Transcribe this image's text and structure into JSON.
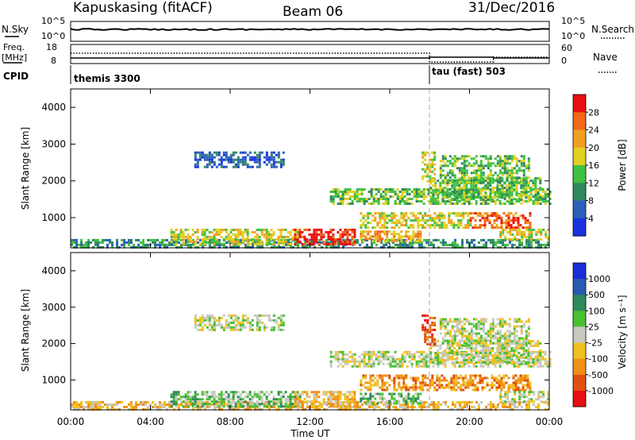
{
  "header": {
    "station": "Kapuskasing (fitACF)",
    "beam": "Beam 06",
    "date": "31/Dec/2016"
  },
  "top_panels": {
    "nsky_label": "N.Sky",
    "nsky_ticks": [
      "10^5",
      "10^0"
    ],
    "nsearch_label": "N.Search",
    "nsearch_ticks": [
      "10^5",
      "10^0"
    ],
    "freq_label": "Freq.",
    "freq_unit": "[MHz]",
    "freq_ticks": [
      "18",
      "8"
    ],
    "nave_label": "Nave",
    "nave_ticks": [
      "60",
      "0"
    ],
    "cpid_label": "CPID"
  },
  "cpid_segments": [
    {
      "name": "themis 3300",
      "start_hour": 0
    },
    {
      "name": "tau (fast) 503",
      "start_hour": 18
    }
  ],
  "colors": {
    "power": [
      "#1a33e0",
      "#2b5fb8",
      "#2e8a5c",
      "#40c040",
      "#e0d020",
      "#f0a020",
      "#f06818",
      "#e81010"
    ],
    "velocity": [
      "#1a2ed8",
      "#2a5ab0",
      "#2e8a5a",
      "#48c030",
      "#c8c8c0",
      "#f0c020",
      "#f09018",
      "#e05010",
      "#e81010"
    ]
  },
  "chart_data": [
    {
      "type": "heatmap",
      "panel": "power",
      "xlabel": "",
      "ylabel": "Slant Range [km]",
      "xlim_hours": [
        0,
        24
      ],
      "ylim_km": [
        180,
        4500
      ],
      "yticks": [
        1000,
        2000,
        3000,
        4000
      ],
      "colorbar_label": "Power [dB]",
      "colorbar_ticks": [
        4,
        8,
        12,
        16,
        20,
        24,
        28
      ],
      "vline_hour": 18,
      "regions": [
        {
          "t0": 6.2,
          "t1": 10.7,
          "r0": 2350,
          "r1": 2800,
          "level": 1
        },
        {
          "t0": 0,
          "t1": 24,
          "r0": 200,
          "r1": 420,
          "level": 2
        },
        {
          "t0": 5.0,
          "t1": 11.5,
          "r0": 300,
          "r1": 700,
          "level": 4
        },
        {
          "t0": 11.2,
          "t1": 14.3,
          "r0": 300,
          "r1": 700,
          "level": 7
        },
        {
          "t0": 14.5,
          "t1": 17.5,
          "r0": 350,
          "r1": 650,
          "level": 5
        },
        {
          "t0": 13.0,
          "t1": 24,
          "r0": 1350,
          "r1": 1800,
          "level": 3
        },
        {
          "t0": 14.5,
          "t1": 20.0,
          "r0": 750,
          "r1": 1150,
          "level": 4
        },
        {
          "t0": 18.0,
          "t1": 23.5,
          "r0": 1500,
          "r1": 2100,
          "level": 3
        },
        {
          "t0": 20.0,
          "t1": 23.0,
          "r0": 750,
          "r1": 1150,
          "level": 6
        },
        {
          "t0": 18.5,
          "t1": 23.0,
          "r0": 1950,
          "r1": 2700,
          "level": 3
        },
        {
          "t0": 17.6,
          "t1": 18.2,
          "r0": 2000,
          "r1": 2800,
          "level": 4
        },
        {
          "t0": 21.5,
          "t1": 24,
          "r0": 400,
          "r1": 700,
          "level": 4
        }
      ]
    },
    {
      "type": "heatmap",
      "panel": "velocity",
      "xlabel": "Time UT",
      "ylabel": "Slant Range [km]",
      "xlim_hours": [
        0,
        24
      ],
      "ylim_km": [
        180,
        4500
      ],
      "yticks": [
        1000,
        2000,
        3000,
        4000
      ],
      "xticks": [
        "00:00",
        "04:00",
        "08:00",
        "12:00",
        "16:00",
        "20:00",
        "00:00"
      ],
      "colorbar_label": "Velocity [m s⁻¹]",
      "colorbar_ticks": [
        1000,
        500,
        100,
        25,
        -25,
        -100,
        -500,
        -1000
      ],
      "vline_hour": 18,
      "regions": [
        {
          "t0": 6.2,
          "t1": 10.7,
          "r0": 2350,
          "r1": 2800,
          "level": 4
        },
        {
          "t0": 0,
          "t1": 24,
          "r0": 200,
          "r1": 420,
          "level": 5
        },
        {
          "t0": 5.0,
          "t1": 11.5,
          "r0": 300,
          "r1": 700,
          "level": 3
        },
        {
          "t0": 11.2,
          "t1": 14.3,
          "r0": 300,
          "r1": 700,
          "level": 5
        },
        {
          "t0": 14.5,
          "t1": 17.5,
          "r0": 350,
          "r1": 650,
          "level": 3
        },
        {
          "t0": 13.0,
          "t1": 24,
          "r0": 1350,
          "r1": 1800,
          "level": 4
        },
        {
          "t0": 14.5,
          "t1": 20.0,
          "r0": 750,
          "r1": 1150,
          "level": 6
        },
        {
          "t0": 18.0,
          "t1": 23.5,
          "r0": 1500,
          "r1": 2100,
          "level": 4
        },
        {
          "t0": 20.0,
          "t1": 23.0,
          "r0": 750,
          "r1": 1150,
          "level": 6
        },
        {
          "t0": 18.5,
          "t1": 23.0,
          "r0": 1950,
          "r1": 2700,
          "level": 4
        },
        {
          "t0": 17.6,
          "t1": 18.2,
          "r0": 2000,
          "r1": 2800,
          "level": 7
        },
        {
          "t0": 21.5,
          "t1": 24,
          "r0": 400,
          "r1": 700,
          "level": 4
        }
      ]
    }
  ]
}
